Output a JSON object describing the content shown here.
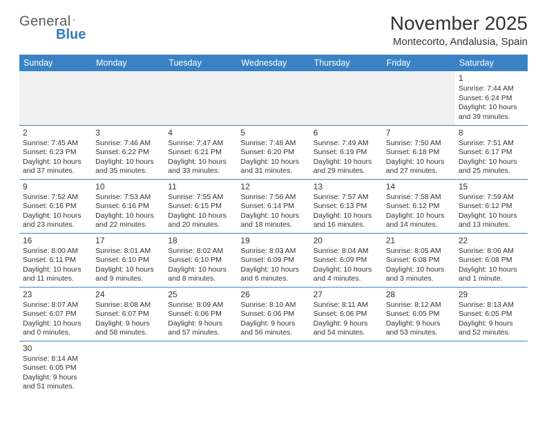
{
  "logo": {
    "word1": "General",
    "word2": "Blue"
  },
  "title": "November 2025",
  "location": "Montecorto, Andalusia, Spain",
  "colors": {
    "header_bg": "#3a82c4",
    "header_text": "#ffffff",
    "rule": "#3a82c4",
    "text": "#333333",
    "logo_gray": "#5a5a5a",
    "logo_blue": "#2f7bbf",
    "empty_bg": "#f0f0f0"
  },
  "dayHeaders": [
    "Sunday",
    "Monday",
    "Tuesday",
    "Wednesday",
    "Thursday",
    "Friday",
    "Saturday"
  ],
  "weeks": [
    [
      null,
      null,
      null,
      null,
      null,
      null,
      {
        "n": "1",
        "sr": "7:44 AM",
        "ss": "6:24 PM",
        "dl": "10 hours and 39 minutes."
      }
    ],
    [
      {
        "n": "2",
        "sr": "7:45 AM",
        "ss": "6:23 PM",
        "dl": "10 hours and 37 minutes."
      },
      {
        "n": "3",
        "sr": "7:46 AM",
        "ss": "6:22 PM",
        "dl": "10 hours and 35 minutes."
      },
      {
        "n": "4",
        "sr": "7:47 AM",
        "ss": "6:21 PM",
        "dl": "10 hours and 33 minutes."
      },
      {
        "n": "5",
        "sr": "7:48 AM",
        "ss": "6:20 PM",
        "dl": "10 hours and 31 minutes."
      },
      {
        "n": "6",
        "sr": "7:49 AM",
        "ss": "6:19 PM",
        "dl": "10 hours and 29 minutes."
      },
      {
        "n": "7",
        "sr": "7:50 AM",
        "ss": "6:18 PM",
        "dl": "10 hours and 27 minutes."
      },
      {
        "n": "8",
        "sr": "7:51 AM",
        "ss": "6:17 PM",
        "dl": "10 hours and 25 minutes."
      }
    ],
    [
      {
        "n": "9",
        "sr": "7:52 AM",
        "ss": "6:16 PM",
        "dl": "10 hours and 23 minutes."
      },
      {
        "n": "10",
        "sr": "7:53 AM",
        "ss": "6:16 PM",
        "dl": "10 hours and 22 minutes."
      },
      {
        "n": "11",
        "sr": "7:55 AM",
        "ss": "6:15 PM",
        "dl": "10 hours and 20 minutes."
      },
      {
        "n": "12",
        "sr": "7:56 AM",
        "ss": "6:14 PM",
        "dl": "10 hours and 18 minutes."
      },
      {
        "n": "13",
        "sr": "7:57 AM",
        "ss": "6:13 PM",
        "dl": "10 hours and 16 minutes."
      },
      {
        "n": "14",
        "sr": "7:58 AM",
        "ss": "6:12 PM",
        "dl": "10 hours and 14 minutes."
      },
      {
        "n": "15",
        "sr": "7:59 AM",
        "ss": "6:12 PM",
        "dl": "10 hours and 13 minutes."
      }
    ],
    [
      {
        "n": "16",
        "sr": "8:00 AM",
        "ss": "6:11 PM",
        "dl": "10 hours and 11 minutes."
      },
      {
        "n": "17",
        "sr": "8:01 AM",
        "ss": "6:10 PM",
        "dl": "10 hours and 9 minutes."
      },
      {
        "n": "18",
        "sr": "8:02 AM",
        "ss": "6:10 PM",
        "dl": "10 hours and 8 minutes."
      },
      {
        "n": "19",
        "sr": "8:03 AM",
        "ss": "6:09 PM",
        "dl": "10 hours and 6 minutes."
      },
      {
        "n": "20",
        "sr": "8:04 AM",
        "ss": "6:09 PM",
        "dl": "10 hours and 4 minutes."
      },
      {
        "n": "21",
        "sr": "8:05 AM",
        "ss": "6:08 PM",
        "dl": "10 hours and 3 minutes."
      },
      {
        "n": "22",
        "sr": "8:06 AM",
        "ss": "6:08 PM",
        "dl": "10 hours and 1 minute."
      }
    ],
    [
      {
        "n": "23",
        "sr": "8:07 AM",
        "ss": "6:07 PM",
        "dl": "10 hours and 0 minutes."
      },
      {
        "n": "24",
        "sr": "8:08 AM",
        "ss": "6:07 PM",
        "dl": "9 hours and 58 minutes."
      },
      {
        "n": "25",
        "sr": "8:09 AM",
        "ss": "6:06 PM",
        "dl": "9 hours and 57 minutes."
      },
      {
        "n": "26",
        "sr": "8:10 AM",
        "ss": "6:06 PM",
        "dl": "9 hours and 56 minutes."
      },
      {
        "n": "27",
        "sr": "8:11 AM",
        "ss": "6:06 PM",
        "dl": "9 hours and 54 minutes."
      },
      {
        "n": "28",
        "sr": "8:12 AM",
        "ss": "6:05 PM",
        "dl": "9 hours and 53 minutes."
      },
      {
        "n": "29",
        "sr": "8:13 AM",
        "ss": "6:05 PM",
        "dl": "9 hours and 52 minutes."
      }
    ],
    [
      {
        "n": "30",
        "sr": "8:14 AM",
        "ss": "6:05 PM",
        "dl": "9 hours and 51 minutes."
      },
      null,
      null,
      null,
      null,
      null,
      null
    ]
  ],
  "labels": {
    "sunrise": "Sunrise: ",
    "sunset": "Sunset: ",
    "daylight": "Daylight: "
  }
}
